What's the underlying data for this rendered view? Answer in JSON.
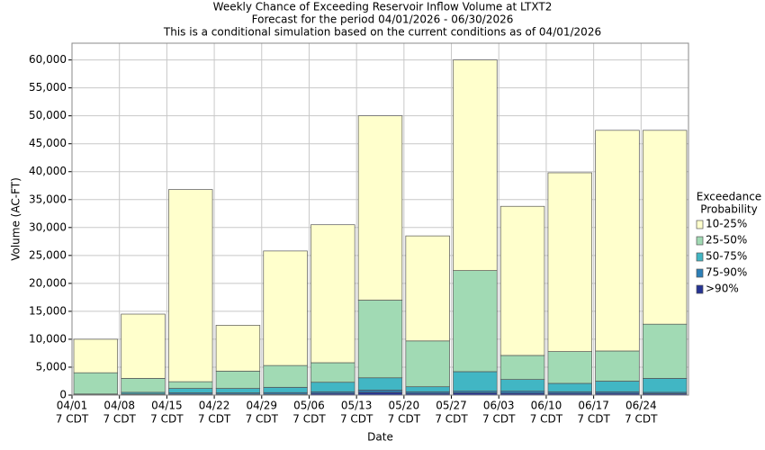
{
  "chart_data": {
    "type": "stacked_bar",
    "title": [
      "Weekly Chance of Exceeding Reservoir Inflow Volume at LTXT2",
      "Forecast for the period 04/01/2026 - 06/30/2026",
      "This is a conditional simulation based on the current conditions as of 04/01/2026"
    ],
    "x_label": "Date",
    "y_label": "Volume (AC-FT)",
    "categories": [
      [
        "04/01",
        "7 CDT"
      ],
      [
        "04/08",
        "7 CDT"
      ],
      [
        "04/15",
        "7 CDT"
      ],
      [
        "04/22",
        "7 CDT"
      ],
      [
        "04/29",
        "7 CDT"
      ],
      [
        "05/06",
        "7 CDT"
      ],
      [
        "05/13",
        "7 CDT"
      ],
      [
        "05/20",
        "7 CDT"
      ],
      [
        "05/27",
        "7 CDT"
      ],
      [
        "06/03",
        "7 CDT"
      ],
      [
        "06/10",
        "7 CDT"
      ],
      [
        "06/17",
        "7 CDT"
      ],
      [
        "06/24",
        "7 CDT"
      ]
    ],
    "legend_title": [
      "Exceedance",
      "Probability"
    ],
    "legend_position": "right",
    "series": [
      {
        "name": "10-25%",
        "color": "#ffffcc",
        "values": [
          6000,
          11500,
          34400,
          8200,
          20500,
          24700,
          33000,
          18800,
          37700,
          26700,
          32000,
          39500,
          34700
        ]
      },
      {
        "name": "25-50%",
        "color": "#a1dab4",
        "values": [
          3800,
          2500,
          1200,
          3100,
          3900,
          3500,
          13900,
          8200,
          18100,
          4300,
          5700,
          5400,
          9700
        ]
      },
      {
        "name": "50-75%",
        "color": "#41b6c4",
        "values": [
          100,
          300,
          800,
          800,
          950,
          1700,
          2200,
          900,
          3500,
          2100,
          1500,
          1900,
          2500
        ]
      },
      {
        "name": "75-90%",
        "color": "#2c7fb8",
        "values": [
          50,
          100,
          250,
          250,
          300,
          300,
          400,
          300,
          300,
          350,
          300,
          300,
          250
        ]
      },
      {
        "name": ">90%",
        "color": "#253494",
        "values": [
          50,
          100,
          150,
          150,
          150,
          300,
          500,
          300,
          400,
          350,
          300,
          300,
          250
        ]
      }
    ],
    "ylim": [
      0,
      63000
    ],
    "yticks": [
      0,
      {
        "value": 5000,
        "label": "5,000"
      },
      {
        "value": 10000,
        "label": "10,000"
      },
      {
        "value": 15000,
        "label": "15,000"
      },
      {
        "value": 20000,
        "label": "20,000"
      },
      {
        "value": 25000,
        "label": "25,000"
      },
      {
        "value": 30000,
        "label": "30,000"
      },
      {
        "value": 35000,
        "label": "35,000"
      },
      {
        "value": 40000,
        "label": "40,000"
      },
      {
        "value": 45000,
        "label": "45,000"
      },
      {
        "value": 50000,
        "label": "50,000"
      },
      {
        "value": 55000,
        "label": "55,000"
      },
      {
        "value": 60000,
        "label": "60,000"
      }
    ],
    "grid": true
  }
}
